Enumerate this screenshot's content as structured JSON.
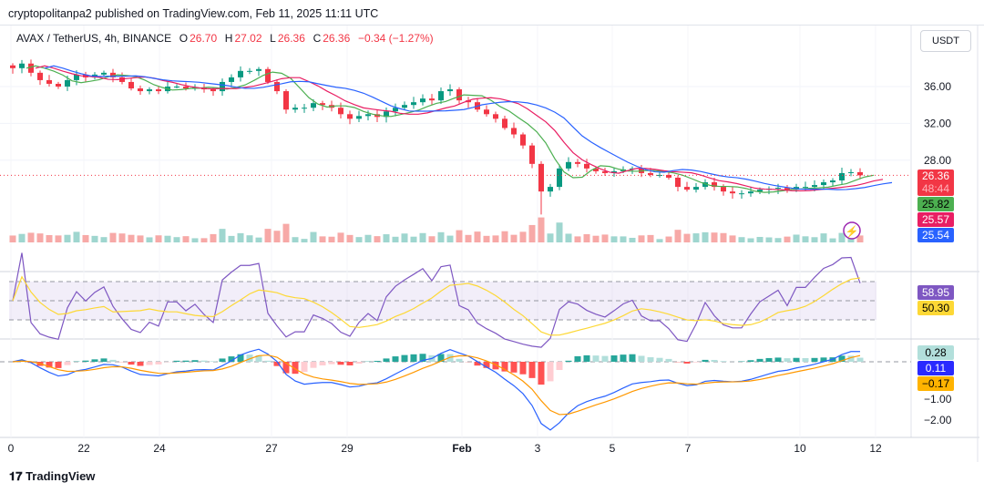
{
  "header": {
    "published": "cryptopolitanpa2 published on TradingView.com, Feb 11, 2025 11:11 UTC"
  },
  "legend": {
    "symbol": "AVAX / TetherUS, 4h, BINANCE",
    "o_label": "O",
    "o": "26.70",
    "h_label": "H",
    "h": "27.02",
    "l_label": "L",
    "l": "26.36",
    "c_label": "C",
    "c": "26.36",
    "change": "−0.34 (−1.27%)"
  },
  "currency_button": "USDT",
  "price_labels": {
    "last": "26.36",
    "countdown": "48:44",
    "ma_green": "25.82",
    "ma_red": "25.57",
    "ma_blue": "25.54"
  },
  "rsi_labels": {
    "rsi": "58.95",
    "rsi_ma": "50.30"
  },
  "macd_labels": {
    "hist": "0.28",
    "macd": "0.11",
    "signal": "−0.17"
  },
  "footer": {
    "brand": "TradingView"
  },
  "colors": {
    "up": "#089981",
    "down": "#f23645",
    "ma_green": "#4caf50",
    "ma_red": "#e91e63",
    "ma_blue": "#2962ff",
    "rsi": "#7e57c2",
    "rsi_ma": "#fdd835",
    "macd": "#2962ff",
    "signal": "#ff9800"
  },
  "chart_data": {
    "type": "candlestick",
    "title": "AVAX / TetherUS, 4h, BINANCE",
    "x_ticks": [
      "0",
      "22",
      "24",
      "27",
      "29",
      "Feb",
      "3",
      "5",
      "7",
      "10",
      "12"
    ],
    "price_ticks": [
      "36.00",
      "32.00",
      "28.00"
    ],
    "rsi_ticks": [],
    "macd_ticks": [
      "−1.00",
      "−2.00"
    ],
    "ylim": [
      22,
      40
    ],
    "closes": [
      38.0,
      38.5,
      37.5,
      36.7,
      36.3,
      36.0,
      36.7,
      37.3,
      37.0,
      37.3,
      37.5,
      37.0,
      36.5,
      35.8,
      35.5,
      35.7,
      35.5,
      36.0,
      36.0,
      35.8,
      35.9,
      35.7,
      35.5,
      36.5,
      37.0,
      37.7,
      37.7,
      37.9,
      36.5,
      35.5,
      33.5,
      33.7,
      33.7,
      34.2,
      34.0,
      33.7,
      33.0,
      32.5,
      32.8,
      33.0,
      32.7,
      33.3,
      33.7,
      34.0,
      34.3,
      34.7,
      34.5,
      35.5,
      35.7,
      34.5,
      34.3,
      33.5,
      33.0,
      32.5,
      31.5,
      30.8,
      29.6,
      27.6,
      24.6,
      25.1,
      27.1,
      27.8,
      27.6,
      27.1,
      26.8,
      26.6,
      26.8,
      27.0,
      27.1,
      26.6,
      26.4,
      26.4,
      26.1,
      25.1,
      24.8,
      25.1,
      25.6,
      25.1,
      24.6,
      24.4,
      24.4,
      24.6,
      24.8,
      24.9,
      25.0,
      24.8,
      25.1,
      25.1,
      25.3,
      25.6,
      25.8,
      26.6,
      26.7,
      26.36
    ]
  }
}
